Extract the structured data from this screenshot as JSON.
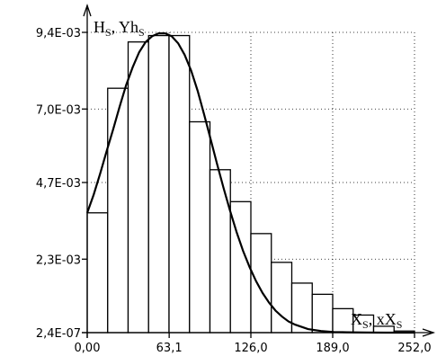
{
  "chart_data": {
    "type": "bar",
    "histogram": true,
    "y_axis_title": {
      "main1": "H",
      "sub1": "S",
      "sep": ", Yh",
      "sub2": "S"
    },
    "x_axis_title": {
      "main1": "X",
      "sub1": "S",
      "sep": ", xX",
      "sub2": "S"
    },
    "x_ticks": [
      "0,00",
      "63,1",
      "126,0",
      "189,0",
      "252,0"
    ],
    "x_tick_values": [
      0,
      63.1,
      126,
      189,
      252
    ],
    "y_ticks": [
      "2,4E-07",
      "2,3E-03",
      "4,7E-03",
      "7,0E-03",
      "9,4E-03"
    ],
    "y_tick_values": [
      2.4e-07,
      0.0023,
      0.0047,
      0.007,
      0.0094
    ],
    "xlim": [
      0,
      252
    ],
    "ylim": [
      0,
      0.0094
    ],
    "grid": true,
    "bins": [
      {
        "x0": 0,
        "x1": 15.75,
        "value": 0.00375
      },
      {
        "x0": 15.75,
        "x1": 31.5,
        "value": 0.00765
      },
      {
        "x0": 31.5,
        "x1": 47.25,
        "value": 0.0091
      },
      {
        "x0": 47.25,
        "x1": 63,
        "value": 0.0093
      },
      {
        "x0": 63,
        "x1": 78.75,
        "value": 0.0093
      },
      {
        "x0": 78.75,
        "x1": 94.5,
        "value": 0.0066
      },
      {
        "x0": 94.5,
        "x1": 110.25,
        "value": 0.0051
      },
      {
        "x0": 110.25,
        "x1": 126,
        "value": 0.0041
      },
      {
        "x0": 126,
        "x1": 141.75,
        "value": 0.0031
      },
      {
        "x0": 141.75,
        "x1": 157.5,
        "value": 0.0022
      },
      {
        "x0": 157.5,
        "x1": 173.25,
        "value": 0.00155
      },
      {
        "x0": 173.25,
        "x1": 189,
        "value": 0.0012
      },
      {
        "x0": 189,
        "x1": 204.75,
        "value": 0.00075
      },
      {
        "x0": 204.75,
        "x1": 220.5,
        "value": 0.00055
      },
      {
        "x0": 220.5,
        "x1": 236.25,
        "value": 0.0002
      },
      {
        "x0": 236.25,
        "x1": 252,
        "value": 5e-05
      }
    ],
    "curve": {
      "x": [
        0,
        5,
        10,
        15,
        20,
        25,
        30,
        35,
        40,
        45,
        50,
        55,
        60,
        65,
        70,
        75,
        80,
        85,
        90,
        95,
        100,
        105,
        110,
        115,
        120,
        125,
        130,
        135,
        140,
        145,
        150,
        155,
        160,
        170,
        180,
        190,
        200,
        215,
        230,
        252
      ],
      "y": [
        0.00375,
        0.00432,
        0.00498,
        0.00569,
        0.00637,
        0.00708,
        0.00775,
        0.00831,
        0.00878,
        0.0091,
        0.00928,
        0.00937,
        0.00937,
        0.00928,
        0.00906,
        0.0087,
        0.0082,
        0.00757,
        0.00683,
        0.00606,
        0.00528,
        0.00452,
        0.00381,
        0.00315,
        0.00256,
        0.00205,
        0.00161,
        0.00124,
        0.00094,
        0.00069,
        0.0005,
        0.00035,
        0.00025,
        0.00011,
        5e-05,
        2e-05,
        1e-05,
        2.4e-06,
        8e-07,
        2.4e-07
      ]
    }
  }
}
